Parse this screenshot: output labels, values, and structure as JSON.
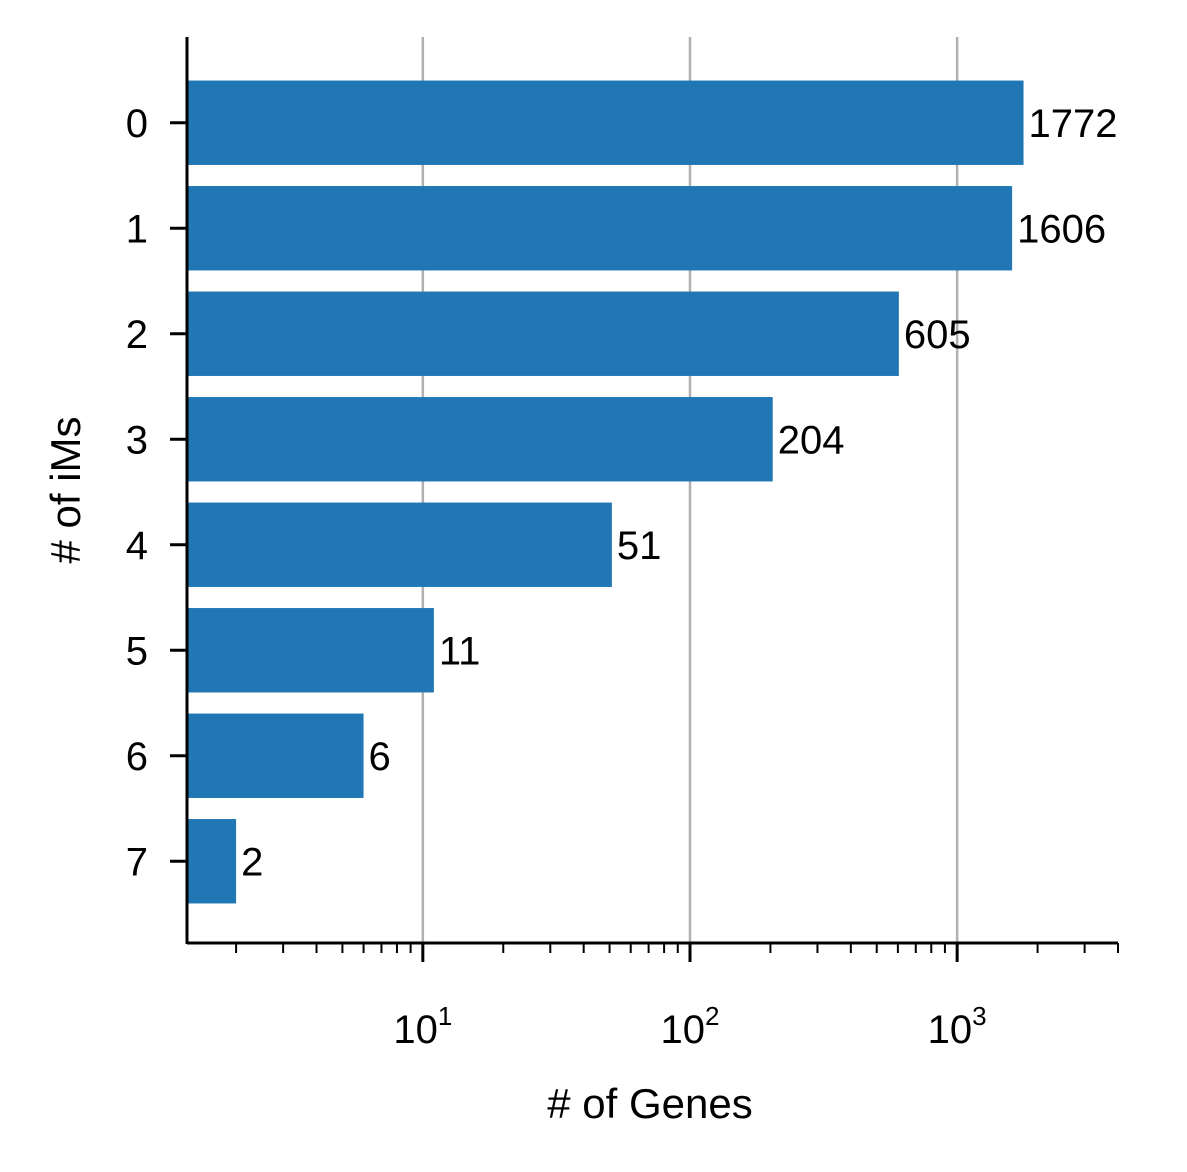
{
  "chart_data": {
    "type": "bar",
    "orientation": "horizontal",
    "title": "",
    "xlabel": "# of Genes",
    "ylabel": "# of iMs",
    "x_scale": "log",
    "xlim": [
      1.31,
      4000
    ],
    "x_major_ticks": [
      {
        "value": 10,
        "base": "10",
        "exp": "1"
      },
      {
        "value": 100,
        "base": "10",
        "exp": "2"
      },
      {
        "value": 1000,
        "base": "10",
        "exp": "3"
      }
    ],
    "categories": [
      "0",
      "1",
      "2",
      "3",
      "4",
      "5",
      "6",
      "7"
    ],
    "values": [
      1772,
      1606,
      605,
      204,
      51,
      11,
      6,
      2
    ],
    "data_labels": [
      "1772",
      "1606",
      "605",
      "204",
      "51",
      "11",
      "6",
      "2"
    ],
    "bar_color": "#2077b4",
    "grid": "x-major",
    "grid_color": "#b0b0b0",
    "legend": "none"
  }
}
